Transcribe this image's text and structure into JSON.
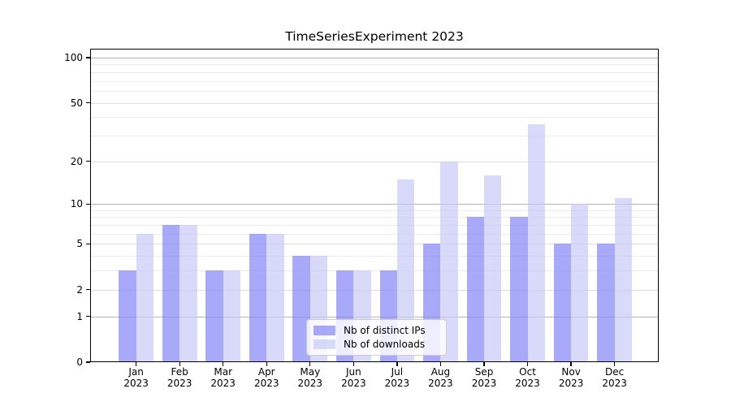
{
  "chart_data": {
    "type": "bar",
    "title": "TimeSeriesExperiment 2023",
    "categories": [
      "Jan",
      "Feb",
      "Mar",
      "Apr",
      "May",
      "Jun",
      "Jul",
      "Aug",
      "Sep",
      "Oct",
      "Nov",
      "Dec"
    ],
    "category_year": "2023",
    "series": [
      {
        "name": "Nb of distinct IPs",
        "color": "rgba(133,133,248,0.7)",
        "values": [
          3,
          7,
          3,
          6,
          4,
          3,
          3,
          5,
          8,
          8,
          5,
          5
        ]
      },
      {
        "name": "Nb of downloads",
        "color": "rgba(201,201,248,0.7)",
        "values": [
          6,
          7,
          3,
          6,
          4,
          3,
          15,
          20,
          16,
          36,
          10,
          11
        ]
      }
    ],
    "yscale": "log1p",
    "ylim": [
      0,
      114
    ],
    "yticks": [
      0,
      1,
      2,
      5,
      10,
      20,
      50,
      100
    ],
    "minor_gridlines": [
      3,
      4,
      6,
      7,
      8,
      9,
      30,
      40,
      60,
      70,
      80,
      90
    ],
    "strong_gridlines": [
      1,
      10,
      100
    ],
    "grid": true,
    "legend_position": "lower center",
    "colors": {
      "axis": "#000000",
      "background": "#ffffff",
      "grid_minor": "#ebebeb",
      "grid_labeled": "#dcdcdc",
      "grid_strong": "#b4b4b4"
    }
  },
  "legend": {
    "items": [
      {
        "label": "Nb of distinct IPs"
      },
      {
        "label": "Nb of downloads"
      }
    ]
  }
}
